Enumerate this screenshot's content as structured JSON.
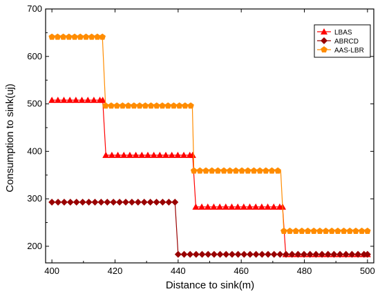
{
  "chart_data": {
    "type": "line",
    "title": "",
    "xlabel": "Distance to sink(m)",
    "ylabel": "Consumption to sink(uj)",
    "xlim": [
      398,
      502
    ],
    "ylim": [
      165,
      700
    ],
    "xticks": [
      400,
      420,
      440,
      460,
      480,
      500
    ],
    "yticks": [
      200,
      300,
      400,
      500,
      600,
      700
    ],
    "legend_position": "top-right",
    "series": [
      {
        "name": "LBAS",
        "color": "#ff0000",
        "marker": "triangle",
        "x": [
          400,
          401.9,
          403.8,
          405.7,
          407.6,
          409.5,
          411.4,
          413.3,
          415.2,
          416.1,
          417.1,
          419.0,
          420.9,
          422.8,
          424.7,
          426.6,
          428.5,
          430.4,
          432.3,
          434.2,
          436.1,
          438.0,
          439.9,
          441.8,
          443.7,
          444.6,
          445.6,
          447.5,
          449.4,
          451.3,
          453.2,
          455.1,
          457.0,
          458.9,
          460.8,
          462.7,
          464.6,
          466.5,
          468.4,
          470.3,
          472.2,
          473.1,
          474.1,
          476.0,
          477.9,
          479.8,
          481.7,
          483.6,
          485.5,
          487.4,
          489.3,
          491.2,
          493.1,
          495.0,
          496.9,
          498.8,
          500
        ],
        "y": [
          508,
          508,
          508,
          508,
          508,
          508,
          508,
          508,
          508,
          508,
          392,
          392,
          392,
          392,
          392,
          392,
          392,
          392,
          392,
          392,
          392,
          392,
          392,
          392,
          392,
          392,
          283,
          283,
          283,
          283,
          283,
          283,
          283,
          283,
          283,
          283,
          283,
          283,
          283,
          283,
          283,
          283,
          183,
          183,
          183,
          183,
          183,
          183,
          183,
          183,
          183,
          183,
          183,
          183,
          183,
          183,
          183
        ],
        "marker_count": 42
      },
      {
        "name": "ABRCD",
        "color": "#990000",
        "marker": "diamond",
        "x": [
          400,
          439,
          440,
          500
        ],
        "y": [
          293,
          293,
          183,
          183
        ],
        "marker_x": [
          400,
          401.95,
          403.9,
          405.85,
          407.8,
          409.75,
          411.7,
          413.65,
          415.6,
          417.55,
          419.5,
          421.45,
          423.4,
          425.35,
          427.3,
          429.25,
          431.2,
          433.15,
          435.1,
          437.05,
          439,
          440,
          441.9,
          443.8,
          445.7,
          447.6,
          449.5,
          451.4,
          453.3,
          455.2,
          457.1,
          459.0,
          460.9,
          462.8,
          464.7,
          466.6,
          468.5,
          470.4,
          472.3,
          474.2,
          476.1,
          478.0,
          479.9,
          481.8,
          483.7,
          485.6,
          487.5,
          489.4,
          491.3,
          493.2,
          495.1,
          497.0,
          498.9,
          500
        ]
      },
      {
        "name": "AAS-LBR",
        "color": "#ff8c00",
        "marker": "pentagon",
        "x": [
          400,
          416,
          417,
          444.5,
          445,
          472.5,
          473.5,
          500
        ],
        "y": [
          641,
          641,
          496,
          496,
          359,
          359,
          232,
          232
        ],
        "marker_x": [
          400,
          401.8,
          403.6,
          405.4,
          407.2,
          409.0,
          410.8,
          412.6,
          414.4,
          416,
          417,
          418.8,
          420.6,
          422.4,
          424.2,
          426.0,
          427.8,
          429.6,
          431.4,
          433.2,
          435.0,
          436.8,
          438.6,
          440.4,
          442.2,
          444.0,
          445,
          446.9,
          448.8,
          450.7,
          452.6,
          454.5,
          456.4,
          458.3,
          460.2,
          462.1,
          464.0,
          465.9,
          467.8,
          469.7,
          471.6,
          473.5,
          475.4,
          477.3,
          479.2,
          481.1,
          483.0,
          484.9,
          486.8,
          488.7,
          490.6,
          492.5,
          494.4,
          496.3,
          498.2,
          500
        ]
      }
    ]
  }
}
